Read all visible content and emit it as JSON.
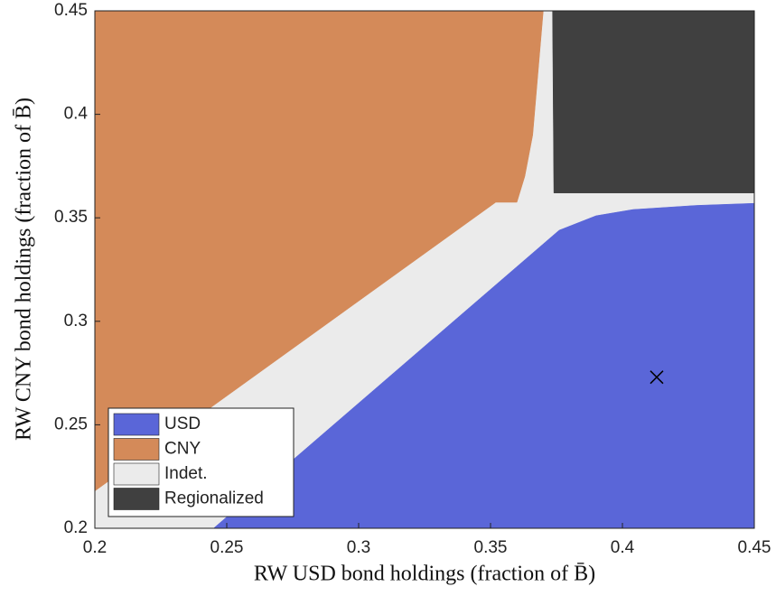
{
  "chart_data": {
    "type": "region",
    "xlabel": "RW USD bond holdings (fraction of B̄)",
    "ylabel": "RW CNY bond holdings (fraction of B̄)",
    "xlim": [
      0.2,
      0.45
    ],
    "ylim": [
      0.2,
      0.45
    ],
    "xticks": [
      0.2,
      0.25,
      0.3,
      0.35,
      0.4,
      0.45
    ],
    "yticks": [
      0.2,
      0.25,
      0.3,
      0.35,
      0.4,
      0.45
    ],
    "legend": "lower left",
    "regions": [
      {
        "name": "USD",
        "color": "#5a66d8",
        "x": [
          0.245,
          0.376,
          0.39,
          0.404,
          0.428,
          0.45,
          0.45
        ],
        "y": [
          0.2,
          0.344,
          0.351,
          0.354,
          0.356,
          0.357,
          0.2
        ]
      },
      {
        "name": "CNY",
        "color": "#d48a59",
        "x": [
          0.2,
          0.37,
          0.368,
          0.366,
          0.363,
          0.36,
          0.352,
          0.2
        ],
        "y": [
          0.45,
          0.45,
          0.42,
          0.39,
          0.37,
          0.3575,
          0.3575,
          0.218
        ]
      },
      {
        "name": "Indet.",
        "color": "#ebebeb",
        "x": [
          0.2,
          0.45,
          0.45,
          0.2
        ],
        "y": [
          0.2,
          0.2,
          0.45,
          0.45
        ]
      },
      {
        "name": "Regionalized",
        "color": "#404040",
        "x": [
          0.374,
          0.45,
          0.45,
          0.3735
        ],
        "y": [
          0.362,
          0.362,
          0.45,
          0.45
        ]
      }
    ],
    "marker": {
      "x": 0.413,
      "y": 0.273
    }
  }
}
